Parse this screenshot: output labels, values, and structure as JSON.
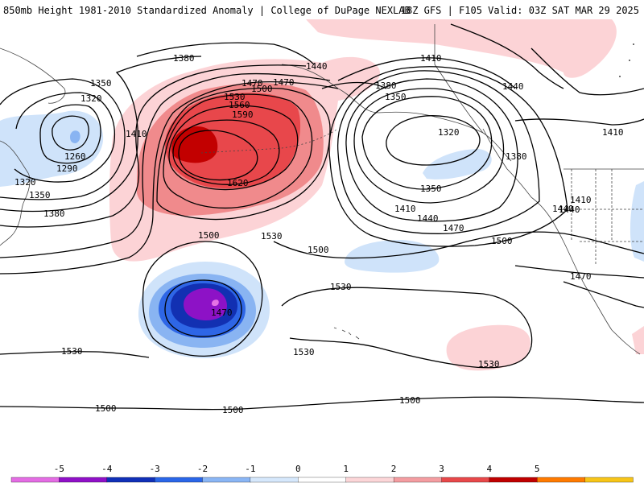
{
  "header": {
    "left_title": "850mb Height 1981-2010 Standardized Anomaly | College of DuPage NEXLAB",
    "right_title": "18Z GFS | F105 Valid: 03Z SAT MAR 29 2025"
  },
  "contours": {
    "labels": [
      {
        "text": "1380",
        "tag": "lbl-1380-a"
      },
      {
        "text": "1350",
        "tag": "lbl-1350-a"
      },
      {
        "text": "1320",
        "tag": "lbl-1320-a"
      },
      {
        "text": "1410",
        "tag": "lbl-1410-a"
      },
      {
        "text": "1260",
        "tag": "lbl-1260"
      },
      {
        "text": "1290",
        "tag": "lbl-1290"
      },
      {
        "text": "1320",
        "tag": "lbl-1320-b"
      },
      {
        "text": "1350",
        "tag": "lbl-1350-b"
      },
      {
        "text": "1380",
        "tag": "lbl-1380-b"
      },
      {
        "text": "1440",
        "tag": "lbl-1440-a"
      },
      {
        "text": "1470",
        "tag": "lbl-1470-a"
      },
      {
        "text": "1500",
        "tag": "lbl-1500-a"
      },
      {
        "text": "1530",
        "tag": "lbl-1530-a"
      },
      {
        "text": "1560",
        "tag": "lbl-1560"
      },
      {
        "text": "1590",
        "tag": "lbl-1590"
      },
      {
        "text": "1620",
        "tag": "lbl-1620"
      },
      {
        "text": "1440",
        "tag": "lbl-1440-b"
      },
      {
        "text": "1470",
        "tag": "lbl-1470-b"
      },
      {
        "text": "1410",
        "tag": "lbl-1410-b"
      },
      {
        "text": "1380",
        "tag": "lbl-1380-c"
      },
      {
        "text": "1350",
        "tag": "lbl-1350-c"
      },
      {
        "text": "1320",
        "tag": "lbl-1320-c"
      },
      {
        "text": "1440",
        "tag": "lbl-1440-c"
      },
      {
        "text": "1410",
        "tag": "lbl-1410-c"
      },
      {
        "text": "1380",
        "tag": "lbl-1380-d"
      },
      {
        "text": "1350",
        "tag": "lbl-1350-d"
      },
      {
        "text": "1410",
        "tag": "lbl-1410-d"
      },
      {
        "text": "1440",
        "tag": "lbl-1440-d"
      },
      {
        "text": "1410",
        "tag": "lbl-1410-e"
      },
      {
        "text": "1440",
        "tag": "lbl-1440-e"
      },
      {
        "text": "1470",
        "tag": "lbl-1470-c"
      },
      {
        "text": "1500",
        "tag": "lbl-1500-b"
      },
      {
        "text": "1470",
        "tag": "lbl-1470-d"
      },
      {
        "text": "1530",
        "tag": "lbl-1530-b"
      },
      {
        "text": "1500",
        "tag": "lbl-1500-c"
      },
      {
        "text": "1500",
        "tag": "lbl-1500-d"
      },
      {
        "text": "1470",
        "tag": "lbl-1470-e"
      },
      {
        "text": "1530",
        "tag": "lbl-1530-c"
      },
      {
        "text": "1530",
        "tag": "lbl-1530-d"
      },
      {
        "text": "1530",
        "tag": "lbl-1530-e"
      },
      {
        "text": "1530",
        "tag": "lbl-1530-f"
      },
      {
        "text": "1500",
        "tag": "lbl-1500-e"
      },
      {
        "text": "1500",
        "tag": "lbl-1500-f"
      },
      {
        "text": "1500",
        "tag": "lbl-1500-g"
      }
    ]
  },
  "legend": {
    "ticks": [
      "-5",
      "-4",
      "-3",
      "-2",
      "-1",
      "0",
      "1",
      "2",
      "3",
      "4",
      "5"
    ],
    "colors": [
      "#e46ce4",
      "#9010c8",
      "#1030b8",
      "#2a66e8",
      "#8ab6f5",
      "#d6e8fc",
      "#ffffff",
      "#fcd6d8",
      "#f49da1",
      "#e8484a",
      "#c00000",
      "#ff7a00",
      "#f7c518"
    ]
  },
  "anomaly_colors": {
    "light_red": "#fcd3d6",
    "med_red": "#f08a8c",
    "strong_red": "#e8474b",
    "deep_red": "#c20000",
    "light_blue": "#cfe3fa",
    "med_blue": "#89b4f2",
    "strong_blue": "#2e66e6",
    "deep_blue": "#1230b2",
    "purple": "#8d12c6",
    "pink": "#e572e5"
  }
}
